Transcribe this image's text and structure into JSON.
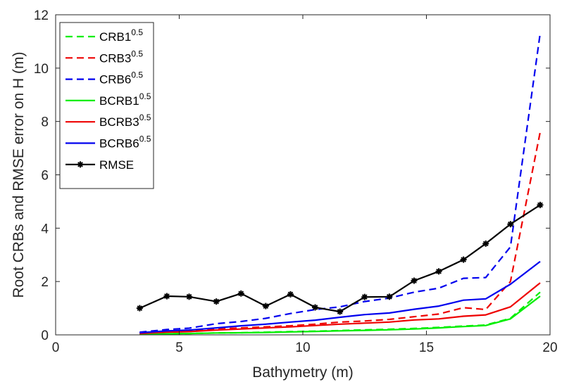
{
  "chart_data": {
    "type": "line",
    "xlabel": "Bathymetry (m)",
    "ylabel": "Root CRBs and RMSE error on H (m)",
    "xlim": [
      0,
      20
    ],
    "ylim": [
      0,
      12
    ],
    "xticks": [
      "0",
      "5",
      "10",
      "15",
      "20"
    ],
    "yticks": [
      "0",
      "2",
      "4",
      "6",
      "8",
      "10",
      "12"
    ],
    "legend_position": "top-left",
    "grid": false,
    "x": [
      3.4,
      4.5,
      5.4,
      6.5,
      7.5,
      8.5,
      9.5,
      10.5,
      11.5,
      12.5,
      13.5,
      14.5,
      15.5,
      16.5,
      17.4,
      18.4,
      19.6
    ],
    "series": [
      {
        "name": "CRB1",
        "sup": "0.5",
        "color": "#00ee00",
        "dash": true,
        "values": [
          0.03,
          0.04,
          0.05,
          0.07,
          0.08,
          0.1,
          0.12,
          0.14,
          0.16,
          0.19,
          0.21,
          0.24,
          0.28,
          0.33,
          0.37,
          0.62,
          1.6
        ]
      },
      {
        "name": "CRB3",
        "sup": "0.5",
        "color": "#ee0000",
        "dash": true,
        "values": [
          0.07,
          0.12,
          0.14,
          0.22,
          0.26,
          0.3,
          0.34,
          0.4,
          0.48,
          0.52,
          0.58,
          0.68,
          0.78,
          1.02,
          0.95,
          2.0,
          7.6
        ]
      },
      {
        "name": "CRB6",
        "sup": "0.5",
        "color": "#0000ee",
        "dash": true,
        "values": [
          0.1,
          0.2,
          0.25,
          0.42,
          0.5,
          0.62,
          0.8,
          0.95,
          1.05,
          1.25,
          1.38,
          1.6,
          1.75,
          2.12,
          2.15,
          3.3,
          11.3
        ]
      },
      {
        "name": "BCRB1",
        "sup": "0.5",
        "color": "#00ee00",
        "dash": false,
        "values": [
          0.03,
          0.04,
          0.05,
          0.07,
          0.08,
          0.09,
          0.11,
          0.13,
          0.15,
          0.17,
          0.19,
          0.22,
          0.26,
          0.31,
          0.35,
          0.6,
          1.45
        ]
      },
      {
        "name": "BCRB3",
        "sup": "0.5",
        "color": "#ee0000",
        "dash": false,
        "values": [
          0.05,
          0.1,
          0.12,
          0.18,
          0.22,
          0.26,
          0.3,
          0.35,
          0.4,
          0.44,
          0.48,
          0.56,
          0.6,
          0.7,
          0.75,
          1.05,
          1.95
        ]
      },
      {
        "name": "BCRB6",
        "sup": "0.5",
        "color": "#0000ee",
        "dash": false,
        "values": [
          0.08,
          0.15,
          0.18,
          0.26,
          0.34,
          0.4,
          0.48,
          0.55,
          0.66,
          0.76,
          0.82,
          0.96,
          1.08,
          1.3,
          1.35,
          1.9,
          2.75
        ]
      },
      {
        "name": "RMSE",
        "sup": "",
        "color": "#000000",
        "dash": false,
        "marker": "asterisk",
        "values": [
          1.0,
          1.45,
          1.43,
          1.25,
          1.55,
          1.08,
          1.52,
          1.03,
          0.87,
          1.42,
          1.43,
          2.03,
          2.38,
          2.82,
          3.42,
          4.15,
          4.87
        ]
      }
    ]
  }
}
